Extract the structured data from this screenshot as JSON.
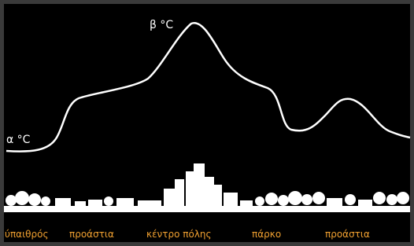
{
  "curve_labels": {
    "peak": "β °C",
    "base": "α °C"
  },
  "zones": [
    "ύπαιθρός",
    "προάστια",
    "κέντρο πόλης",
    "πάρκο",
    "προάστια"
  ]
}
